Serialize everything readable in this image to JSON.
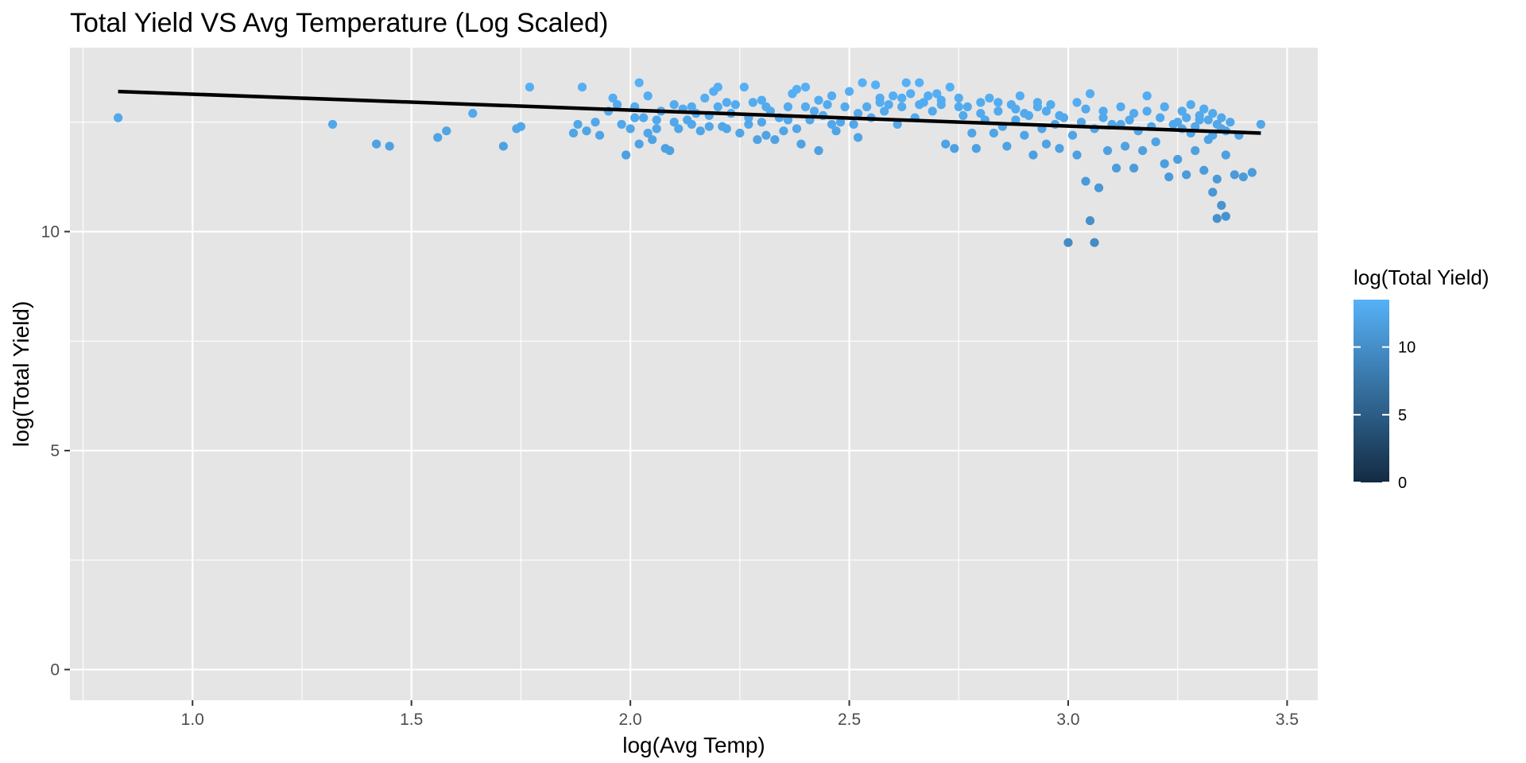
{
  "chart_data": {
    "type": "scatter",
    "title": "Total Yield VS Avg Temperature (Log Scaled)",
    "xlabel": "log(Avg Temp)",
    "ylabel": "log(Total Yield)",
    "xlim": [
      0.72,
      3.57
    ],
    "ylim": [
      -0.7,
      14.2
    ],
    "x_ticks": [
      1.0,
      1.5,
      2.0,
      2.5,
      3.0,
      3.5
    ],
    "x_tick_labels": [
      "1.0",
      "1.5",
      "2.0",
      "2.5",
      "3.0",
      "3.5"
    ],
    "y_ticks": [
      0,
      5,
      10
    ],
    "y_tick_labels": [
      "0",
      "5",
      "10"
    ],
    "grid": true,
    "panel_background": "#e5e5e5",
    "grid_color": "#ffffff",
    "color_scale": {
      "title": "log(Total Yield)",
      "low_color": "#132b43",
      "high_color": "#56b1f7",
      "range": [
        0,
        13.5
      ],
      "ticks": [
        0,
        5,
        10
      ],
      "tick_labels": [
        "0",
        "5",
        "10"
      ]
    },
    "legend_position": "right",
    "trend_line": {
      "x": [
        0.83,
        3.44
      ],
      "y": [
        13.2,
        12.25
      ],
      "color": "#000000"
    },
    "points": [
      [
        0.83,
        12.6
      ],
      [
        1.32,
        12.45
      ],
      [
        1.42,
        12.0
      ],
      [
        1.45,
        11.95
      ],
      [
        1.56,
        12.15
      ],
      [
        1.58,
        12.3
      ],
      [
        1.64,
        12.7
      ],
      [
        1.71,
        11.95
      ],
      [
        1.74,
        12.35
      ],
      [
        1.75,
        12.4
      ],
      [
        1.77,
        13.3
      ],
      [
        1.87,
        12.25
      ],
      [
        1.88,
        12.45
      ],
      [
        1.89,
        13.3
      ],
      [
        1.9,
        12.3
      ],
      [
        1.92,
        12.5
      ],
      [
        1.93,
        12.2
      ],
      [
        1.95,
        12.75
      ],
      [
        1.96,
        13.05
      ],
      [
        1.97,
        12.9
      ],
      [
        1.98,
        12.45
      ],
      [
        1.99,
        11.75
      ],
      [
        2.0,
        12.35
      ],
      [
        2.01,
        12.6
      ],
      [
        2.02,
        12.0
      ],
      [
        2.02,
        13.4
      ],
      [
        2.03,
        12.6
      ],
      [
        2.04,
        12.25
      ],
      [
        2.04,
        13.1
      ],
      [
        2.05,
        12.1
      ],
      [
        2.06,
        12.55
      ],
      [
        2.07,
        12.75
      ],
      [
        2.08,
        11.9
      ],
      [
        2.09,
        11.85
      ],
      [
        2.1,
        12.5
      ],
      [
        2.1,
        12.9
      ],
      [
        2.11,
        12.35
      ],
      [
        2.12,
        12.8
      ],
      [
        2.13,
        12.55
      ],
      [
        2.14,
        12.85
      ],
      [
        2.15,
        12.7
      ],
      [
        2.16,
        12.3
      ],
      [
        2.17,
        13.05
      ],
      [
        2.18,
        12.4
      ],
      [
        2.19,
        13.2
      ],
      [
        2.2,
        12.85
      ],
      [
        2.2,
        13.3
      ],
      [
        2.21,
        12.4
      ],
      [
        2.22,
        12.35
      ],
      [
        2.23,
        12.7
      ],
      [
        2.24,
        12.9
      ],
      [
        2.25,
        12.25
      ],
      [
        2.26,
        13.3
      ],
      [
        2.27,
        12.6
      ],
      [
        2.28,
        12.95
      ],
      [
        2.29,
        12.1
      ],
      [
        2.3,
        12.5
      ],
      [
        2.3,
        13.0
      ],
      [
        2.31,
        12.2
      ],
      [
        2.32,
        12.75
      ],
      [
        2.33,
        12.1
      ],
      [
        2.34,
        12.6
      ],
      [
        2.35,
        12.3
      ],
      [
        2.36,
        12.85
      ],
      [
        2.37,
        13.15
      ],
      [
        2.38,
        12.35
      ],
      [
        2.38,
        13.25
      ],
      [
        2.39,
        12.0
      ],
      [
        2.4,
        12.85
      ],
      [
        2.4,
        13.3
      ],
      [
        2.41,
        12.55
      ],
      [
        2.42,
        12.75
      ],
      [
        2.43,
        11.85
      ],
      [
        2.44,
        12.65
      ],
      [
        2.45,
        12.9
      ],
      [
        2.46,
        13.1
      ],
      [
        2.47,
        12.3
      ],
      [
        2.48,
        12.5
      ],
      [
        2.49,
        12.85
      ],
      [
        2.5,
        13.2
      ],
      [
        2.51,
        12.45
      ],
      [
        2.52,
        12.15
      ],
      [
        2.53,
        13.4
      ],
      [
        2.54,
        12.85
      ],
      [
        2.55,
        12.6
      ],
      [
        2.56,
        13.35
      ],
      [
        2.57,
        13.05
      ],
      [
        2.58,
        12.75
      ],
      [
        2.59,
        12.9
      ],
      [
        2.6,
        13.1
      ],
      [
        2.61,
        12.45
      ],
      [
        2.62,
        12.85
      ],
      [
        2.63,
        13.4
      ],
      [
        2.64,
        13.15
      ],
      [
        2.65,
        12.6
      ],
      [
        2.66,
        13.4
      ],
      [
        2.67,
        12.95
      ],
      [
        2.68,
        13.1
      ],
      [
        2.69,
        12.75
      ],
      [
        2.7,
        13.15
      ],
      [
        2.71,
        12.9
      ],
      [
        2.72,
        12.0
      ],
      [
        2.73,
        13.3
      ],
      [
        2.74,
        11.9
      ],
      [
        2.75,
        13.05
      ],
      [
        2.76,
        12.65
      ],
      [
        2.77,
        12.85
      ],
      [
        2.78,
        12.25
      ],
      [
        2.79,
        11.9
      ],
      [
        2.8,
        12.95
      ],
      [
        2.81,
        12.55
      ],
      [
        2.82,
        13.05
      ],
      [
        2.83,
        12.25
      ],
      [
        2.84,
        12.75
      ],
      [
        2.85,
        12.4
      ],
      [
        2.86,
        11.95
      ],
      [
        2.87,
        12.9
      ],
      [
        2.88,
        12.55
      ],
      [
        2.89,
        13.1
      ],
      [
        2.9,
        12.2
      ],
      [
        2.91,
        12.65
      ],
      [
        2.92,
        11.75
      ],
      [
        2.93,
        12.85
      ],
      [
        2.94,
        12.35
      ],
      [
        2.95,
        12.0
      ],
      [
        2.96,
        12.9
      ],
      [
        2.97,
        12.45
      ],
      [
        2.98,
        11.9
      ],
      [
        2.99,
        12.6
      ],
      [
        3.0,
        9.75
      ],
      [
        3.01,
        12.2
      ],
      [
        3.02,
        11.75
      ],
      [
        3.03,
        12.5
      ],
      [
        3.04,
        11.15
      ],
      [
        3.05,
        10.25
      ],
      [
        3.05,
        13.15
      ],
      [
        3.06,
        12.35
      ],
      [
        3.07,
        11.0
      ],
      [
        3.08,
        12.75
      ],
      [
        3.09,
        11.85
      ],
      [
        3.1,
        12.45
      ],
      [
        3.11,
        11.45
      ],
      [
        3.12,
        12.85
      ],
      [
        3.13,
        11.95
      ],
      [
        3.14,
        12.55
      ],
      [
        3.15,
        11.45
      ],
      [
        3.16,
        12.3
      ],
      [
        3.17,
        11.85
      ],
      [
        3.18,
        13.1
      ],
      [
        3.19,
        12.4
      ],
      [
        3.2,
        12.05
      ],
      [
        3.21,
        12.6
      ],
      [
        3.22,
        11.55
      ],
      [
        3.23,
        11.25
      ],
      [
        3.24,
        12.45
      ],
      [
        3.25,
        11.65
      ],
      [
        3.26,
        12.75
      ],
      [
        3.27,
        11.3
      ],
      [
        3.28,
        12.25
      ],
      [
        3.29,
        11.85
      ],
      [
        3.3,
        12.55
      ],
      [
        3.31,
        11.4
      ],
      [
        3.32,
        12.1
      ],
      [
        3.33,
        12.7
      ],
      [
        3.33,
        10.9
      ],
      [
        3.34,
        10.3
      ],
      [
        3.34,
        11.2
      ],
      [
        3.35,
        12.35
      ],
      [
        3.35,
        10.6
      ],
      [
        3.36,
        11.75
      ],
      [
        3.36,
        10.35
      ],
      [
        3.37,
        12.5
      ],
      [
        3.38,
        11.3
      ],
      [
        3.39,
        12.2
      ],
      [
        3.4,
        11.25
      ],
      [
        3.42,
        11.35
      ],
      [
        3.44,
        12.45
      ],
      [
        3.06,
        9.75
      ],
      [
        2.9,
        12.7
      ],
      [
        2.95,
        12.75
      ],
      [
        3.02,
        12.95
      ],
      [
        3.08,
        12.6
      ],
      [
        3.15,
        12.7
      ],
      [
        3.22,
        12.85
      ],
      [
        3.28,
        12.9
      ],
      [
        3.3,
        12.65
      ],
      [
        3.31,
        12.8
      ],
      [
        3.32,
        12.55
      ],
      [
        3.29,
        12.4
      ],
      [
        3.27,
        12.6
      ],
      [
        3.26,
        12.35
      ],
      [
        3.34,
        12.45
      ],
      [
        3.35,
        12.6
      ],
      [
        3.36,
        12.3
      ],
      [
        3.33,
        12.2
      ],
      [
        3.25,
        12.5
      ],
      [
        3.18,
        12.75
      ],
      [
        3.12,
        12.45
      ],
      [
        3.04,
        12.8
      ],
      [
        2.98,
        12.65
      ],
      [
        2.93,
        12.95
      ],
      [
        2.88,
        12.8
      ],
      [
        2.84,
        12.95
      ],
      [
        2.8,
        12.7
      ],
      [
        2.75,
        12.85
      ],
      [
        2.71,
        13.0
      ],
      [
        2.66,
        12.9
      ],
      [
        2.62,
        13.05
      ],
      [
        2.57,
        12.95
      ],
      [
        2.52,
        12.7
      ],
      [
        2.46,
        12.45
      ],
      [
        2.43,
        13.0
      ],
      [
        2.36,
        12.55
      ],
      [
        2.31,
        12.85
      ],
      [
        2.27,
        12.45
      ],
      [
        2.22,
        12.95
      ],
      [
        2.18,
        12.65
      ],
      [
        2.14,
        12.45
      ],
      [
        2.06,
        12.35
      ],
      [
        2.01,
        12.85
      ]
    ]
  }
}
